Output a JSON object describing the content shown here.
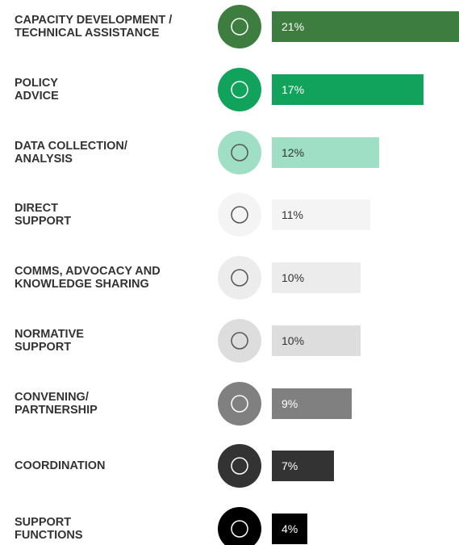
{
  "chart_data": {
    "type": "bar",
    "orientation": "horizontal",
    "categories": [
      "CAPACITY DEVELOPMENT /\nTECHNICAL ASSISTANCE",
      "POLICY\nADVICE",
      "DATA COLLECTION/\nANALYSIS",
      "DIRECT\nSUPPORT",
      "COMMS, ADVOCACY AND\nKNOWLEDGE SHARING",
      "NORMATIVE\nSUPPORT",
      "CONVENING/\nPARTNERSHIP",
      "COORDINATION",
      "SUPPORT\nFUNCTIONS"
    ],
    "values": [
      21,
      17,
      12,
      11,
      10,
      10,
      9,
      7,
      4
    ],
    "value_labels": [
      "21%",
      "17%",
      "12%",
      "11%",
      "10%",
      "10%",
      "9%",
      "7%",
      "4%"
    ],
    "colors": [
      "#3d7d3f",
      "#11a35b",
      "#9fdfc6",
      "#f4f4f4",
      "#ececec",
      "#dddddd",
      "#808080",
      "#333333",
      "#000000"
    ]
  }
}
